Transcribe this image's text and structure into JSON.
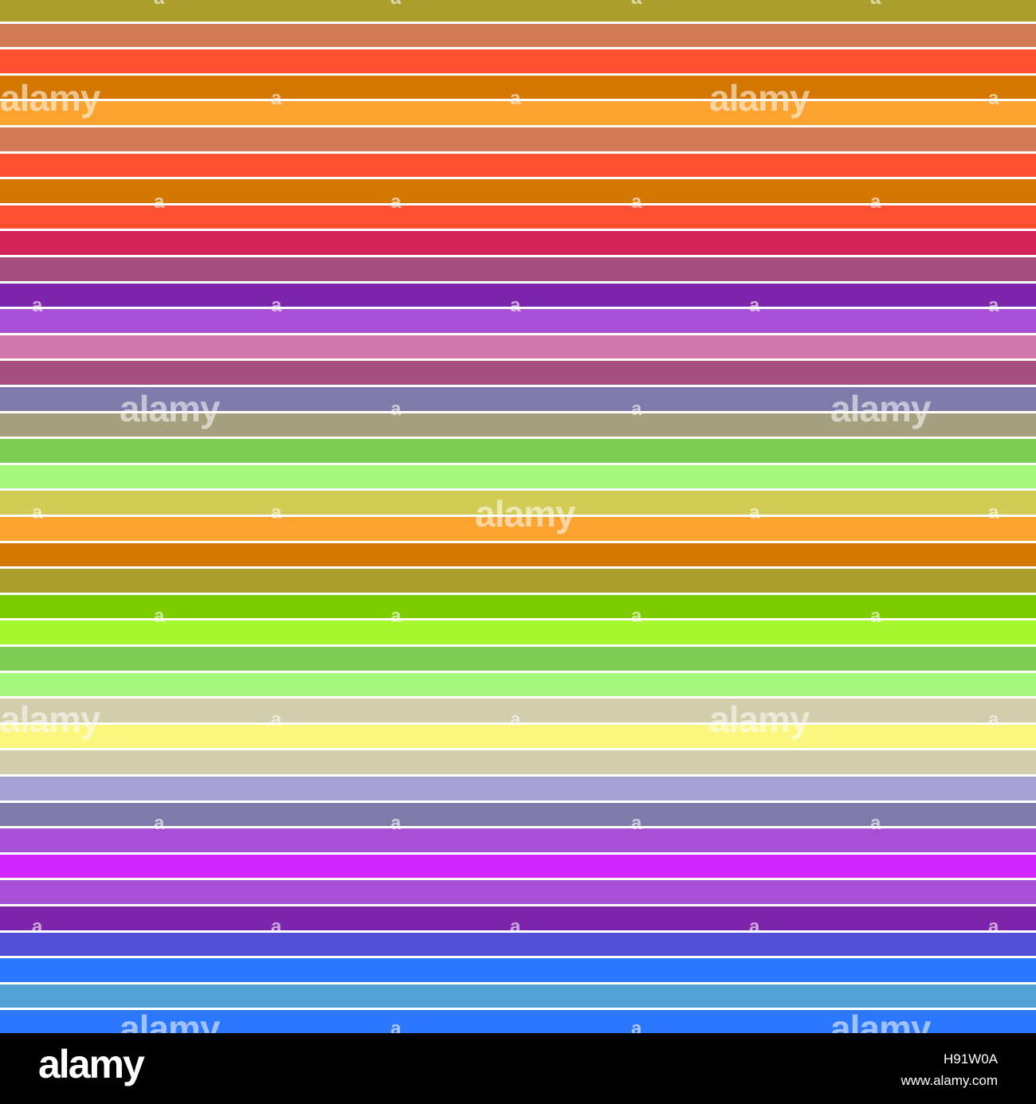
{
  "stripes": [
    {
      "color": "#ab9f2c"
    },
    {
      "color": "#d57a57"
    },
    {
      "color": "#ff5131"
    },
    {
      "color": "#d47700"
    },
    {
      "color": "#fba22f"
    },
    {
      "color": "#d57a57"
    },
    {
      "color": "#ff5131"
    },
    {
      "color": "#d47700"
    },
    {
      "color": "#ff5131"
    },
    {
      "color": "#d42359"
    },
    {
      "color": "#a74e7e"
    },
    {
      "color": "#7e24aa"
    },
    {
      "color": "#a74fd5"
    },
    {
      "color": "#d277aa"
    },
    {
      "color": "#a74e7e"
    },
    {
      "color": "#7e7aa9"
    },
    {
      "color": "#a6a07e"
    },
    {
      "color": "#7dcc54"
    },
    {
      "color": "#a5f77e"
    },
    {
      "color": "#d2cc54"
    },
    {
      "color": "#fba22f"
    },
    {
      "color": "#d47700"
    },
    {
      "color": "#ab9f2c"
    },
    {
      "color": "#7dcc00"
    },
    {
      "color": "#a6f72b"
    },
    {
      "color": "#7dcc54"
    },
    {
      "color": "#a5f77e"
    },
    {
      "color": "#d2cdaa"
    },
    {
      "color": "#fbf77e"
    },
    {
      "color": "#d2cdaa"
    },
    {
      "color": "#a7a1d5"
    },
    {
      "color": "#7e7aa9"
    },
    {
      "color": "#a74fd5"
    },
    {
      "color": "#d226ff"
    },
    {
      "color": "#a74fd5"
    },
    {
      "color": "#7e24aa"
    },
    {
      "color": "#554fd5"
    },
    {
      "color": "#2b77fd"
    },
    {
      "color": "#54a2d4"
    },
    {
      "color": "#2b77fd"
    }
  ],
  "watermark": {
    "word": "alamy",
    "letter": "a"
  },
  "footer": {
    "logo": "alamy",
    "image_id": "H91W0A",
    "url": "www.alamy.com"
  }
}
